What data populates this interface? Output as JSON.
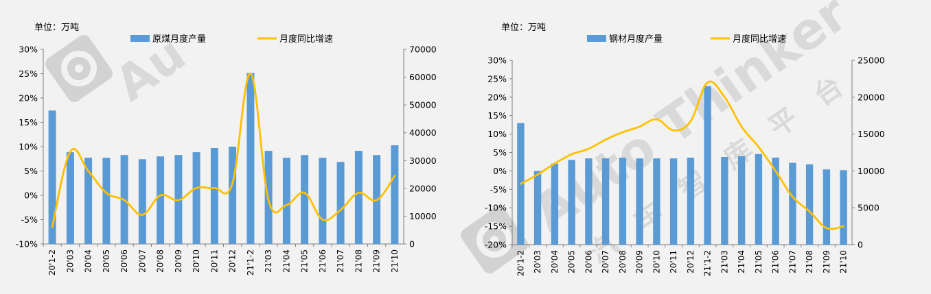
{
  "watermark": {
    "text": "Auto Thinker",
    "cn_text": "汽车智库平台"
  },
  "colors": {
    "bar": "#5b9bd5",
    "line": "#ffc000",
    "axis": "#7f7f7f",
    "text": "#000000",
    "watermark": "#d9d9d9"
  },
  "chart_data": [
    {
      "type": "bar",
      "unit_label": "单位：万吨",
      "categories": [
        "20'1-2",
        "20'03",
        "20'04",
        "20'05",
        "20'06",
        "20'07",
        "20'08",
        "20'09",
        "20'10",
        "20'11",
        "20'12",
        "21'1-2",
        "21'03",
        "21'04",
        "21'05",
        "21'06",
        "21'07",
        "21'08",
        "21'09",
        "21'10"
      ],
      "series": [
        {
          "name": "原煤月度产量",
          "kind": "bar",
          "axis": "right",
          "values": [
            48000,
            33000,
            31000,
            31000,
            32000,
            30500,
            31500,
            32000,
            33000,
            34500,
            35000,
            61500,
            33500,
            31000,
            32000,
            31000,
            29500,
            33500,
            32000,
            35500
          ]
        },
        {
          "name": "月度同比增速",
          "kind": "line",
          "axis": "left",
          "smooth": true,
          "values": [
            -6.5,
            9.0,
            5.0,
            0.5,
            -1.0,
            -4.0,
            0.0,
            -1.0,
            1.5,
            1.5,
            2.5,
            25.0,
            -1.0,
            -2.0,
            0.5,
            -5.0,
            -3.0,
            0.5,
            -1.0,
            4.0
          ]
        }
      ],
      "left_axis": {
        "min": -10,
        "max": 30,
        "step": 5,
        "ticks": [
          "-10%",
          "-5%",
          "0%",
          "5%",
          "10%",
          "15%",
          "20%",
          "25%",
          "30%"
        ]
      },
      "right_axis": {
        "min": 0,
        "max": 70000,
        "step": 10000,
        "ticks": [
          "0",
          "10000",
          "20000",
          "30000",
          "40000",
          "50000",
          "60000",
          "70000"
        ]
      },
      "legend": "top"
    },
    {
      "type": "bar",
      "unit_label": "单位：万吨",
      "categories": [
        "20'1-2",
        "20'03",
        "20'04",
        "20'05",
        "20'06",
        "20'07",
        "20'08",
        "20'09",
        "20'10",
        "20'11",
        "20'12",
        "21'1-2",
        "21'03",
        "21'04",
        "21'05",
        "21'06",
        "21'07",
        "21'08",
        "21'09",
        "21'10"
      ],
      "series": [
        {
          "name": "钢材月度产量",
          "kind": "bar",
          "axis": "right",
          "values": [
            16500,
            10000,
            11000,
            11500,
            11700,
            11700,
            11800,
            11700,
            11700,
            11700,
            11800,
            21500,
            11900,
            12000,
            12300,
            11800,
            11100,
            10900,
            10200,
            10100
          ]
        },
        {
          "name": "月度同比增速",
          "kind": "line",
          "axis": "left",
          "smooth": true,
          "values": [
            -3.5,
            -1.0,
            2.0,
            4.5,
            6.0,
            8.5,
            10.5,
            12.0,
            14.0,
            11.0,
            13.5,
            24.0,
            20.0,
            12.0,
            6.5,
            0.0,
            -7.0,
            -11.0,
            -15.5,
            -15.0
          ]
        }
      ],
      "left_axis": {
        "min": -20,
        "max": 30,
        "step": 5,
        "ticks": [
          "-20%",
          "-15%",
          "-10%",
          "-5%",
          "0%",
          "5%",
          "10%",
          "15%",
          "20%",
          "25%",
          "30%"
        ]
      },
      "right_axis": {
        "min": 0,
        "max": 25000,
        "step": 5000,
        "ticks": [
          "0",
          "5000",
          "10000",
          "15000",
          "20000",
          "25000"
        ]
      },
      "legend": "top"
    }
  ]
}
